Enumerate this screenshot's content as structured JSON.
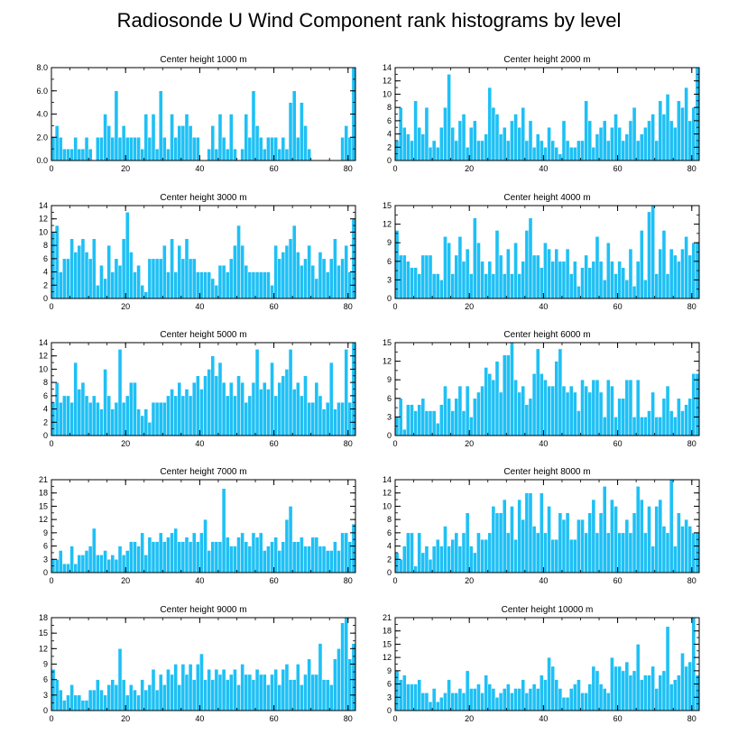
{
  "title": "Radiosonde U Wind Component rank histograms by level",
  "colors": {
    "bar": "#1ec0f5",
    "bar_edge": "#ffffff",
    "axis": "#000000",
    "background": "#ffffff"
  },
  "chart_data": [
    {
      "type": "bar",
      "title": "Center height 1000 m",
      "xlabel": "",
      "ylabel": "",
      "xlim": [
        0,
        82
      ],
      "ylim": [
        0,
        8
      ],
      "yticks": [
        0,
        2,
        4,
        6,
        8
      ],
      "ytick_labels": [
        "0.0",
        "2.0",
        "4.0",
        "6.0",
        "8.0"
      ],
      "xticks": [
        0,
        20,
        40,
        60,
        80
      ],
      "xtick_labels": [
        "0",
        "20",
        "40",
        "60",
        "80"
      ],
      "values": [
        2,
        3,
        2,
        1,
        1,
        1,
        2,
        1,
        1,
        2,
        1,
        0,
        2,
        2,
        4,
        3,
        2,
        6,
        2,
        3,
        2,
        2,
        2,
        2,
        1,
        4,
        2,
        4,
        1,
        6,
        2,
        1,
        4,
        2,
        3,
        3,
        4,
        3,
        2,
        2,
        0,
        0,
        1,
        3,
        1,
        4,
        2,
        1,
        4,
        1,
        0,
        1,
        4,
        2,
        6,
        3,
        2,
        1,
        2,
        2,
        2,
        1,
        2,
        1,
        5,
        6,
        2,
        5,
        3,
        1,
        0,
        0,
        0,
        0,
        0,
        0,
        0,
        0,
        2,
        3,
        2,
        8
      ]
    },
    {
      "type": "bar",
      "title": "Center height 2000 m",
      "xlabel": "",
      "ylabel": "",
      "xlim": [
        0,
        82
      ],
      "ylim": [
        0,
        14
      ],
      "yticks": [
        0,
        2,
        4,
        6,
        8,
        10,
        12,
        14
      ],
      "ytick_labels": [
        "0",
        "2",
        "4",
        "6",
        "8",
        "10",
        "12",
        "14"
      ],
      "xticks": [
        0,
        20,
        40,
        60,
        80
      ],
      "xtick_labels": [
        "0",
        "20",
        "40",
        "60",
        "80"
      ],
      "values": [
        3,
        8,
        5,
        4,
        3,
        9,
        5,
        4,
        8,
        2,
        3,
        2,
        5,
        8,
        13,
        5,
        3,
        6,
        7,
        2,
        5,
        6,
        3,
        3,
        4,
        11,
        8,
        7,
        4,
        5,
        3,
        6,
        7,
        5,
        8,
        3,
        6,
        2,
        4,
        3,
        2,
        5,
        3,
        2,
        1,
        6,
        3,
        2,
        2,
        3,
        3,
        9,
        6,
        2,
        4,
        5,
        6,
        3,
        5,
        7,
        5,
        3,
        4,
        6,
        8,
        3,
        4,
        5,
        6,
        7,
        3,
        9,
        7,
        10,
        6,
        5,
        9,
        8,
        11,
        6,
        8,
        14
      ]
    },
    {
      "type": "bar",
      "title": "Center height 3000 m",
      "xlabel": "",
      "ylabel": "",
      "xlim": [
        0,
        82
      ],
      "ylim": [
        0,
        14
      ],
      "yticks": [
        0,
        2,
        4,
        6,
        8,
        10,
        12,
        14
      ],
      "ytick_labels": [
        "0",
        "2",
        "4",
        "6",
        "8",
        "10",
        "12",
        "14"
      ],
      "xticks": [
        0,
        20,
        40,
        60,
        80
      ],
      "xtick_labels": [
        "0",
        "20",
        "40",
        "60",
        "80"
      ],
      "values": [
        10,
        11,
        4,
        6,
        6,
        9,
        7,
        8,
        9,
        7,
        6,
        9,
        2,
        5,
        3,
        8,
        4,
        6,
        5,
        9,
        13,
        7,
        4,
        5,
        2,
        1,
        6,
        6,
        6,
        6,
        8,
        4,
        9,
        4,
        8,
        6,
        9,
        6,
        6,
        4,
        4,
        4,
        4,
        3,
        2,
        5,
        5,
        4,
        6,
        8,
        11,
        8,
        5,
        4,
        4,
        4,
        4,
        4,
        4,
        2,
        8,
        6,
        7,
        8,
        9,
        11,
        7,
        5,
        6,
        8,
        5,
        3,
        7,
        6,
        4,
        6,
        9,
        5,
        6,
        8,
        4,
        12
      ]
    },
    {
      "type": "bar",
      "title": "Center height 4000 m",
      "xlabel": "",
      "ylabel": "",
      "xlim": [
        0,
        82
      ],
      "ylim": [
        0,
        15
      ],
      "yticks": [
        0,
        3,
        6,
        9,
        12,
        15
      ],
      "ytick_labels": [
        "0",
        "3",
        "6",
        "9",
        "12",
        "15"
      ],
      "xticks": [
        0,
        20,
        40,
        60,
        80
      ],
      "xtick_labels": [
        "0",
        "20",
        "40",
        "60",
        "80"
      ],
      "values": [
        11,
        7,
        7,
        6,
        5,
        5,
        4,
        7,
        7,
        7,
        4,
        4,
        3,
        10,
        9,
        4,
        7,
        10,
        6,
        8,
        4,
        13,
        9,
        6,
        4,
        6,
        4,
        11,
        7,
        4,
        8,
        4,
        9,
        4,
        6,
        11,
        13,
        7,
        7,
        5,
        9,
        8,
        6,
        8,
        6,
        6,
        8,
        4,
        6,
        2,
        5,
        7,
        5,
        6,
        10,
        6,
        3,
        9,
        6,
        4,
        6,
        5,
        3,
        8,
        2,
        6,
        11,
        3,
        14,
        15,
        4,
        8,
        11,
        4,
        8,
        7,
        6,
        8,
        10,
        7,
        9,
        9
      ]
    },
    {
      "type": "bar",
      "title": "Center height 5000 m",
      "xlabel": "",
      "ylabel": "",
      "xlim": [
        0,
        82
      ],
      "ylim": [
        0,
        14
      ],
      "yticks": [
        0,
        2,
        4,
        6,
        8,
        10,
        12,
        14
      ],
      "ytick_labels": [
        "0",
        "2",
        "4",
        "6",
        "8",
        "10",
        "12",
        "14"
      ],
      "xticks": [
        0,
        20,
        40,
        60,
        80
      ],
      "xtick_labels": [
        "0",
        "20",
        "40",
        "60",
        "80"
      ],
      "values": [
        5,
        8,
        5,
        6,
        6,
        5,
        11,
        7,
        8,
        6,
        5,
        6,
        5,
        4,
        10,
        6,
        4,
        5,
        13,
        5,
        6,
        8,
        8,
        4,
        3,
        4,
        2,
        5,
        5,
        5,
        5,
        6,
        7,
        6,
        8,
        6,
        7,
        6,
        8,
        9,
        7,
        9,
        10,
        12,
        9,
        11,
        8,
        6,
        8,
        6,
        9,
        8,
        5,
        6,
        8,
        13,
        7,
        8,
        7,
        11,
        6,
        8,
        9,
        10,
        13,
        7,
        8,
        6,
        9,
        5,
        5,
        8,
        6,
        4,
        5,
        11,
        4,
        5,
        5,
        13,
        5,
        14
      ]
    },
    {
      "type": "bar",
      "title": "Center height 6000 m",
      "xlabel": "",
      "ylabel": "",
      "xlim": [
        0,
        82
      ],
      "ylim": [
        0,
        15
      ],
      "yticks": [
        0,
        3,
        6,
        9,
        12,
        15
      ],
      "ytick_labels": [
        "0",
        "3",
        "6",
        "9",
        "12",
        "15"
      ],
      "xticks": [
        0,
        20,
        40,
        60,
        80
      ],
      "xtick_labels": [
        "0",
        "20",
        "40",
        "60",
        "80"
      ],
      "values": [
        3,
        6,
        1,
        5,
        5,
        4,
        5,
        6,
        4,
        4,
        4,
        2,
        5,
        8,
        6,
        4,
        6,
        8,
        4,
        8,
        3,
        6,
        7,
        8,
        11,
        10,
        9,
        12,
        7,
        13,
        13,
        15,
        9,
        7,
        8,
        5,
        6,
        10,
        14,
        10,
        9,
        8,
        8,
        12,
        14,
        8,
        7,
        8,
        7,
        4,
        9,
        8,
        7,
        9,
        9,
        7,
        3,
        9,
        8,
        3,
        6,
        6,
        9,
        9,
        3,
        9,
        3,
        3,
        4,
        7,
        3,
        3,
        6,
        8,
        4,
        3,
        6,
        4,
        5,
        6,
        10,
        10
      ]
    },
    {
      "type": "bar",
      "title": "Center height 7000 m",
      "xlabel": "",
      "ylabel": "",
      "xlim": [
        0,
        82
      ],
      "ylim": [
        0,
        21
      ],
      "yticks": [
        0,
        3,
        6,
        9,
        12,
        15,
        18,
        21
      ],
      "ytick_labels": [
        "0",
        "3",
        "6",
        "9",
        "12",
        "15",
        "18",
        "21"
      ],
      "xticks": [
        0,
        20,
        40,
        60,
        80
      ],
      "xtick_labels": [
        "0",
        "20",
        "40",
        "60",
        "80"
      ],
      "values": [
        3,
        3,
        5,
        2,
        2,
        6,
        2,
        4,
        4,
        5,
        6,
        10,
        4,
        4,
        5,
        3,
        4,
        3,
        6,
        4,
        5,
        7,
        7,
        6,
        9,
        4,
        8,
        7,
        7,
        9,
        7,
        8,
        9,
        10,
        7,
        7,
        8,
        7,
        9,
        7,
        9,
        12,
        5,
        7,
        7,
        7,
        19,
        8,
        6,
        6,
        8,
        9,
        7,
        6,
        9,
        8,
        9,
        5,
        6,
        7,
        8,
        5,
        7,
        12,
        15,
        7,
        7,
        8,
        6,
        6,
        8,
        8,
        6,
        6,
        5,
        5,
        7,
        5,
        9,
        9,
        7,
        11
      ]
    },
    {
      "type": "bar",
      "title": "Center height 8000 m",
      "xlabel": "",
      "ylabel": "",
      "xlim": [
        0,
        82
      ],
      "ylim": [
        0,
        14
      ],
      "yticks": [
        0,
        2,
        4,
        6,
        8,
        10,
        12,
        14
      ],
      "ytick_labels": [
        "0",
        "2",
        "4",
        "6",
        "8",
        "10",
        "12",
        "14"
      ],
      "xticks": [
        0,
        20,
        40,
        60,
        80
      ],
      "xtick_labels": [
        "0",
        "20",
        "40",
        "60",
        "80"
      ],
      "values": [
        3,
        2,
        4,
        6,
        6,
        1,
        6,
        3,
        4,
        2,
        4,
        5,
        4,
        7,
        4,
        5,
        6,
        4,
        6,
        9,
        4,
        3,
        6,
        5,
        5,
        6,
        10,
        9,
        9,
        11,
        6,
        10,
        5,
        11,
        8,
        12,
        12,
        7,
        6,
        12,
        6,
        10,
        5,
        5,
        9,
        8,
        9,
        5,
        5,
        8,
        8,
        6,
        9,
        11,
        6,
        9,
        13,
        6,
        11,
        10,
        6,
        6,
        8,
        6,
        9,
        13,
        11,
        6,
        10,
        4,
        10,
        11,
        7,
        6,
        14,
        4,
        9,
        7,
        8,
        7,
        6,
        6
      ]
    },
    {
      "type": "bar",
      "title": "Center height 9000 m",
      "xlabel": "",
      "ylabel": "",
      "xlim": [
        0,
        82
      ],
      "ylim": [
        0,
        18
      ],
      "yticks": [
        0,
        3,
        6,
        9,
        12,
        15,
        18
      ],
      "ytick_labels": [
        "0",
        "3",
        "6",
        "9",
        "12",
        "15",
        "18"
      ],
      "xticks": [
        0,
        20,
        40,
        60,
        80
      ],
      "xtick_labels": [
        "0",
        "20",
        "40",
        "60",
        "80"
      ],
      "values": [
        8,
        6,
        4,
        2,
        3,
        5,
        3,
        3,
        2,
        2,
        4,
        4,
        6,
        4,
        3,
        5,
        6,
        5,
        12,
        6,
        3,
        5,
        4,
        3,
        6,
        4,
        5,
        8,
        4,
        7,
        5,
        8,
        7,
        9,
        5,
        9,
        7,
        9,
        6,
        9,
        11,
        6,
        8,
        6,
        8,
        7,
        8,
        6,
        7,
        8,
        5,
        9,
        7,
        7,
        6,
        8,
        7,
        7,
        5,
        7,
        8,
        5,
        8,
        9,
        6,
        6,
        9,
        5,
        7,
        10,
        7,
        7,
        13,
        6,
        6,
        5,
        10,
        12,
        17,
        18,
        10,
        13
      ]
    },
    {
      "type": "bar",
      "title": "Center height 10000 m",
      "xlabel": "",
      "ylabel": "",
      "xlim": [
        0,
        82
      ],
      "ylim": [
        0,
        21
      ],
      "yticks": [
        0,
        3,
        6,
        9,
        12,
        15,
        18,
        21
      ],
      "ytick_labels": [
        "0",
        "3",
        "6",
        "9",
        "12",
        "15",
        "18",
        "21"
      ],
      "xticks": [
        0,
        20,
        40,
        60,
        80
      ],
      "xtick_labels": [
        "0",
        "20",
        "40",
        "60",
        "80"
      ],
      "values": [
        9,
        7,
        8,
        6,
        6,
        6,
        7,
        4,
        4,
        2,
        5,
        2,
        3,
        4,
        7,
        4,
        4,
        5,
        4,
        9,
        5,
        5,
        6,
        4,
        8,
        6,
        5,
        3,
        4,
        5,
        6,
        4,
        5,
        5,
        7,
        4,
        5,
        6,
        5,
        8,
        7,
        12,
        10,
        7,
        5,
        3,
        3,
        5,
        6,
        7,
        4,
        4,
        6,
        10,
        9,
        6,
        5,
        4,
        12,
        10,
        10,
        9,
        11,
        8,
        9,
        15,
        7,
        8,
        8,
        10,
        5,
        8,
        9,
        19,
        6,
        7,
        8,
        13,
        10,
        11,
        21,
        8
      ]
    }
  ]
}
